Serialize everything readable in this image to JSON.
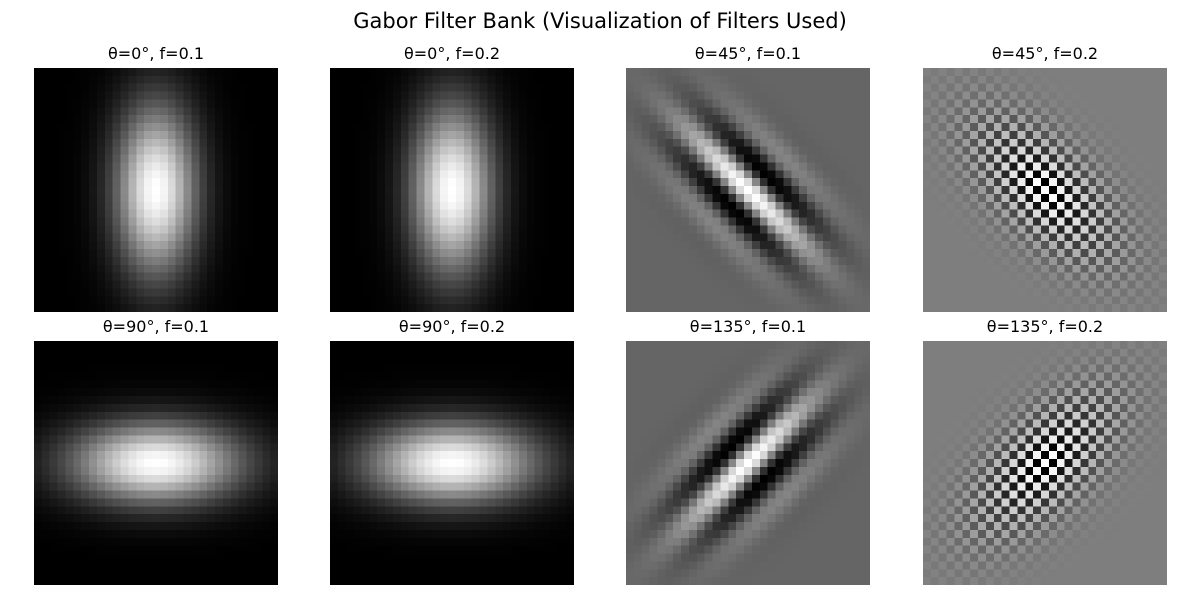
{
  "figure": {
    "title": "Gabor Filter Bank (Visualization of Filters Used)"
  },
  "panels": [
    {
      "title": "θ=0°, f=0.1",
      "theta_deg": 0,
      "frequency": 0.1
    },
    {
      "title": "θ=0°, f=0.2",
      "theta_deg": 0,
      "frequency": 0.2
    },
    {
      "title": "θ=45°, f=0.1",
      "theta_deg": 45,
      "frequency": 0.1
    },
    {
      "title": "θ=45°, f=0.2",
      "theta_deg": 45,
      "frequency": 0.2
    },
    {
      "title": "θ=90°, f=0.1",
      "theta_deg": 90,
      "frequency": 0.1
    },
    {
      "title": "θ=90°, f=0.2",
      "theta_deg": 90,
      "frequency": 0.2
    },
    {
      "title": "θ=135°, f=0.1",
      "theta_deg": 135,
      "frequency": 0.1
    },
    {
      "title": "θ=135°, f=0.2",
      "theta_deg": 135,
      "frequency": 0.2
    }
  ],
  "colormap": "gray"
}
